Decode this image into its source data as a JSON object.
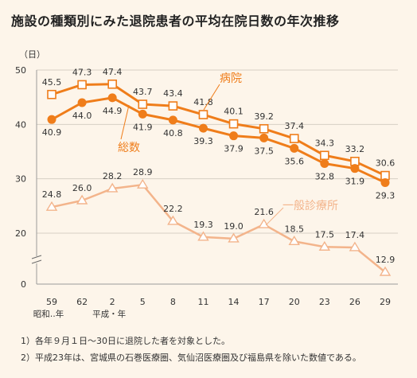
{
  "title": "施設の種類別にみた退院患者の平均在院日数の年次推移",
  "chart_data": {
    "type": "line",
    "ylabel": "（日）",
    "yticks": [
      0,
      20,
      30,
      40,
      50
    ],
    "ylim": [
      0,
      50
    ],
    "y_axis_break": true,
    "categories": [
      "59",
      "62",
      "2",
      "5",
      "8",
      "11",
      "14",
      "17",
      "20",
      "23",
      "26",
      "29"
    ],
    "era_labels": [
      {
        "text": "昭和‥年",
        "under": "59"
      },
      {
        "text": "平成・年",
        "under": "2"
      }
    ],
    "grid": true,
    "series": [
      {
        "name": "病院",
        "marker": "open-square",
        "color": "#ef7d1a",
        "values": [
          45.5,
          47.3,
          47.4,
          43.7,
          43.4,
          41.8,
          40.1,
          39.2,
          37.4,
          34.3,
          33.2,
          30.6
        ]
      },
      {
        "name": "総数",
        "marker": "filled-circle",
        "color": "#ef7d1a",
        "values": [
          40.9,
          44.0,
          44.9,
          41.9,
          40.8,
          39.3,
          37.9,
          37.5,
          35.6,
          32.8,
          31.9,
          29.3
        ]
      },
      {
        "name": "一般診療所",
        "marker": "open-triangle",
        "color": "#f3b48b",
        "values": [
          24.8,
          26.0,
          28.2,
          28.9,
          22.2,
          19.3,
          19.0,
          21.6,
          18.5,
          17.5,
          17.4,
          12.9
        ]
      }
    ]
  },
  "notes": [
    "1）各年９月１日～30日に退院した者を対象とした。",
    "2）平成23年は、宮城県の石巻医療圏、気仙沼医療圏及び福島県を除いた数値である。"
  ]
}
